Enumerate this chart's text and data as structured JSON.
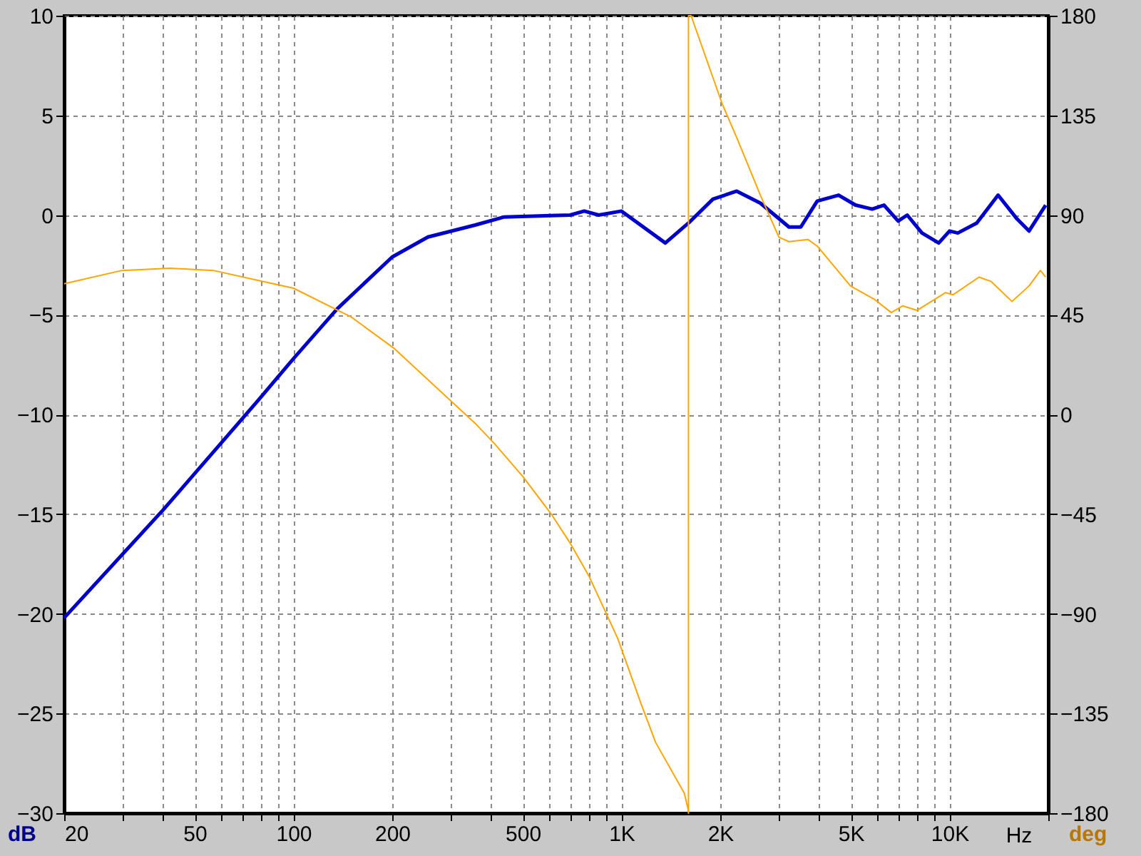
{
  "chart_data": {
    "type": "line",
    "xlabel": "Hz",
    "ylabel": "dB",
    "y2label": "deg",
    "log": "x",
    "grid": true,
    "xlim": [
      20,
      20000
    ],
    "ylim": [
      -30,
      10
    ],
    "y2lim": [
      -180,
      180
    ],
    "xticks": [
      20,
      {
        "value": 30,
        "label": null
      },
      {
        "value": 40,
        "label": null
      },
      50,
      {
        "value": 60,
        "label": null
      },
      {
        "value": 70,
        "label": null
      },
      {
        "value": 80,
        "label": null
      },
      {
        "value": 90,
        "label": null
      },
      100,
      200,
      {
        "value": 300,
        "label": null
      },
      {
        "value": 400,
        "label": null
      },
      500,
      {
        "value": 600,
        "label": null
      },
      {
        "value": 700,
        "label": null
      },
      {
        "value": 800,
        "label": null
      },
      {
        "value": 900,
        "label": null
      },
      {
        "value": 1000,
        "label": "1K"
      },
      {
        "value": 2000,
        "label": "2K"
      },
      {
        "value": 3000,
        "label": null
      },
      {
        "value": 4000,
        "label": null
      },
      {
        "value": 5000,
        "label": "5K"
      },
      {
        "value": 6000,
        "label": null
      },
      {
        "value": 7000,
        "label": null
      },
      {
        "value": 8000,
        "label": null
      },
      {
        "value": 9000,
        "label": null
      },
      {
        "value": 10000,
        "label": "10K"
      },
      {
        "value": 20000,
        "label": null
      }
    ],
    "yticks": [
      -30,
      -25,
      -20,
      -15,
      -10,
      -5,
      0,
      5,
      10
    ],
    "y2ticks": [
      -180,
      -135,
      -90,
      -45,
      0,
      45,
      90,
      135,
      180
    ],
    "series": [
      {
        "color": "#0000cc",
        "axis": "y",
        "x": [
          20,
          40,
          78,
          100,
          136,
          200,
          257,
          358,
          437,
          697,
          770,
          852,
          1000,
          1360,
          1600,
          1900,
          2245,
          2650,
          3240,
          3520,
          3950,
          4590,
          5170,
          5810,
          6310,
          6970,
          7430,
          8240,
          9270,
          10000,
          10600,
          12100,
          14060,
          16070,
          17470,
          19630
        ],
        "values": [
          -20.2,
          -14.8,
          -9.3,
          -7.2,
          -4.7,
          -2.1,
          -1.1,
          -0.5,
          -0.1,
          0.0,
          0.2,
          0.0,
          0.2,
          -1.4,
          -0.4,
          0.8,
          1.2,
          0.6,
          -0.6,
          -0.6,
          0.7,
          1.0,
          0.5,
          0.3,
          0.5,
          -0.3,
          0.0,
          -0.9,
          -1.4,
          -0.8,
          -0.9,
          -0.4,
          1.0,
          -0.2,
          -0.8,
          0.5
        ]
      },
      {
        "color": "#ffa500",
        "axis": "y2",
        "x": [
          20,
          30,
          42,
          57,
          81,
          100,
          150,
          202,
          358,
          409,
          500,
          611,
          697,
          796,
          973,
          1150,
          1270,
          1554,
          1595,
          1600,
          1600,
          1630,
          2030,
          2245,
          2650,
          3020,
          3240,
          3700,
          3950,
          4990,
          5900,
          6640,
          7200,
          7960,
          9730,
          10240,
          12300,
          13400,
          15500,
          17470,
          18930,
          19630
        ],
        "values": [
          59,
          65,
          66,
          65,
          60,
          57,
          44,
          30,
          -4,
          -13,
          -28,
          -45,
          -58,
          -73,
          -101,
          -131,
          -148,
          -171,
          -178,
          -180,
          180,
          180,
          140,
          125,
          99,
          80,
          78,
          79,
          76,
          58,
          52,
          46,
          49,
          47,
          55,
          54,
          62,
          60,
          51,
          58,
          65,
          62
        ]
      }
    ]
  }
}
